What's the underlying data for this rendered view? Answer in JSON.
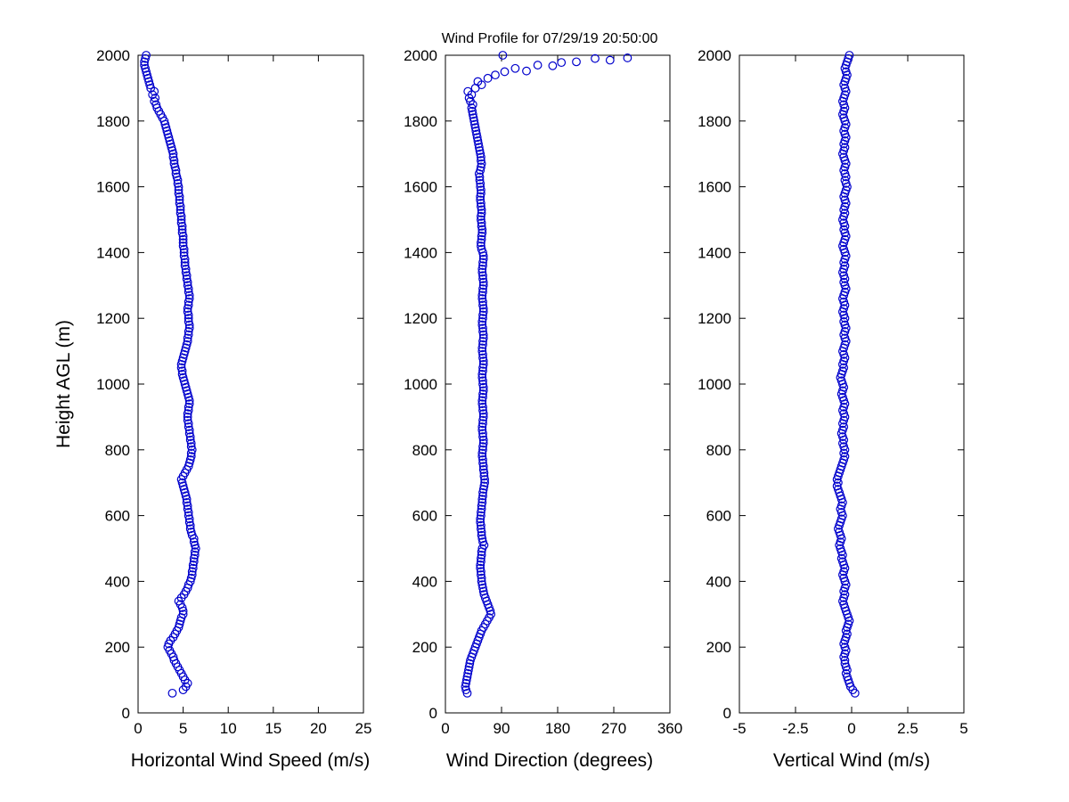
{
  "chart_data": {
    "type": "scatter",
    "title": "Wind Profile for  07/29/19 20:50:00",
    "ylabel": "Height AGL (m)",
    "ylim": [
      0,
      2000
    ],
    "yticks": [
      0,
      200,
      400,
      600,
      800,
      1000,
      1200,
      1400,
      1600,
      1800,
      2000
    ],
    "grid": false,
    "legend": "none",
    "marker": {
      "color": "#0000cc",
      "radius": 4.3
    },
    "heights": [
      60,
      70,
      80,
      90,
      100,
      110,
      120,
      130,
      140,
      150,
      160,
      170,
      180,
      190,
      200,
      210,
      220,
      230,
      240,
      250,
      260,
      270,
      280,
      290,
      300,
      310,
      320,
      330,
      340,
      350,
      360,
      370,
      380,
      390,
      400,
      410,
      420,
      430,
      440,
      450,
      460,
      470,
      480,
      490,
      500,
      510,
      520,
      530,
      540,
      550,
      560,
      570,
      580,
      590,
      600,
      610,
      620,
      630,
      640,
      650,
      660,
      670,
      680,
      690,
      700,
      710,
      720,
      730,
      740,
      750,
      760,
      770,
      780,
      790,
      800,
      810,
      820,
      830,
      840,
      850,
      860,
      870,
      880,
      890,
      900,
      910,
      920,
      930,
      940,
      950,
      960,
      970,
      980,
      990,
      1000,
      1010,
      1020,
      1030,
      1040,
      1050,
      1060,
      1070,
      1080,
      1090,
      1100,
      1110,
      1120,
      1130,
      1140,
      1150,
      1160,
      1170,
      1180,
      1190,
      1200,
      1210,
      1220,
      1230,
      1240,
      1250,
      1260,
      1270,
      1280,
      1290,
      1300,
      1310,
      1320,
      1330,
      1340,
      1350,
      1360,
      1370,
      1380,
      1390,
      1400,
      1410,
      1420,
      1430,
      1440,
      1450,
      1460,
      1470,
      1480,
      1490,
      1500,
      1510,
      1520,
      1530,
      1540,
      1550,
      1560,
      1570,
      1580,
      1590,
      1600,
      1610,
      1620,
      1630,
      1640,
      1650,
      1660,
      1670,
      1680,
      1690,
      1700,
      1710,
      1720,
      1730,
      1740,
      1750,
      1760,
      1770,
      1780,
      1790,
      1800,
      1810,
      1820,
      1830,
      1840,
      1850,
      1860,
      1870,
      1880,
      1890,
      1900,
      1910,
      1920,
      1930,
      1940,
      1950,
      1960,
      1970,
      1980,
      1990,
      2000
    ],
    "panels": [
      {
        "id": "horizontal-wind-speed",
        "xlabel": "Horizontal Wind Speed (m/s)",
        "xlim": [
          0,
          25
        ],
        "xticks": [
          0,
          5,
          10,
          15,
          20,
          25
        ],
        "values": [
          3.8,
          5.0,
          5.3,
          5.5,
          5.2,
          5.0,
          4.8,
          4.6,
          4.4,
          4.2,
          4.0,
          3.9,
          3.7,
          3.5,
          3.3,
          3.4,
          3.6,
          3.9,
          4.1,
          4.3,
          4.5,
          4.6,
          4.7,
          4.8,
          5.0,
          5.0,
          4.9,
          4.7,
          4.5,
          4.8,
          5.1,
          5.3,
          5.5,
          5.6,
          5.8,
          5.9,
          6.0,
          6.0,
          6.1,
          6.1,
          6.2,
          6.2,
          6.3,
          6.3,
          6.4,
          6.3,
          6.2,
          6.2,
          6.0,
          5.9,
          5.8,
          5.8,
          5.7,
          5.7,
          5.6,
          5.6,
          5.5,
          5.5,
          5.4,
          5.4,
          5.3,
          5.2,
          5.1,
          5.0,
          4.9,
          4.8,
          5.0,
          5.2,
          5.4,
          5.6,
          5.7,
          5.8,
          5.9,
          5.9,
          6.0,
          5.9,
          5.9,
          5.8,
          5.8,
          5.7,
          5.7,
          5.6,
          5.6,
          5.5,
          5.5,
          5.5,
          5.6,
          5.6,
          5.7,
          5.7,
          5.6,
          5.5,
          5.4,
          5.3,
          5.2,
          5.1,
          5.0,
          4.9,
          4.9,
          4.8,
          4.8,
          4.9,
          5.0,
          5.1,
          5.2,
          5.3,
          5.4,
          5.5,
          5.5,
          5.6,
          5.6,
          5.7,
          5.7,
          5.6,
          5.6,
          5.6,
          5.5,
          5.5,
          5.6,
          5.6,
          5.7,
          5.7,
          5.6,
          5.6,
          5.5,
          5.5,
          5.4,
          5.4,
          5.3,
          5.3,
          5.2,
          5.2,
          5.2,
          5.1,
          5.1,
          5.1,
          5.0,
          5.0,
          5.0,
          5.0,
          4.9,
          4.9,
          4.9,
          4.8,
          4.8,
          4.8,
          4.7,
          4.7,
          4.7,
          4.6,
          4.6,
          4.6,
          4.5,
          4.5,
          4.5,
          4.4,
          4.4,
          4.3,
          4.2,
          4.2,
          4.1,
          4.0,
          4.0,
          3.9,
          3.9,
          3.8,
          3.7,
          3.6,
          3.5,
          3.4,
          3.3,
          3.2,
          3.1,
          3.0,
          2.9,
          2.7,
          2.5,
          2.3,
          2.1,
          2.0,
          1.8,
          1.9,
          1.6,
          1.8,
          1.4,
          1.3,
          1.2,
          1.1,
          1.0,
          0.9,
          0.8,
          0.7,
          0.7,
          0.8,
          0.9
        ]
      },
      {
        "id": "wind-direction",
        "xlabel": "Wind Direction (degrees)",
        "xlim": [
          0,
          360
        ],
        "xticks": [
          0,
          90,
          180,
          270,
          360
        ],
        "values": [
          35,
          33,
          32,
          33,
          34,
          35,
          36,
          37,
          38,
          39,
          40,
          42,
          44,
          46,
          48,
          50,
          52,
          54,
          56,
          58,
          61,
          64,
          67,
          70,
          73,
          72,
          70,
          68,
          66,
          64,
          62,
          61,
          60,
          59,
          58,
          58,
          57,
          57,
          56,
          56,
          57,
          57,
          58,
          58,
          59,
          62,
          60,
          59,
          58,
          58,
          57,
          57,
          56,
          56,
          57,
          57,
          58,
          58,
          59,
          59,
          60,
          60,
          61,
          62,
          63,
          63,
          62,
          62,
          61,
          61,
          60,
          60,
          59,
          59,
          60,
          60,
          61,
          61,
          60,
          60,
          59,
          59,
          60,
          60,
          61,
          61,
          60,
          60,
          59,
          59,
          60,
          60,
          61,
          61,
          60,
          60,
          59,
          59,
          60,
          60,
          61,
          61,
          60,
          60,
          59,
          59,
          60,
          60,
          61,
          61,
          60,
          60,
          59,
          59,
          60,
          60,
          61,
          61,
          60,
          60,
          59,
          59,
          60,
          60,
          61,
          61,
          60,
          60,
          59,
          59,
          60,
          60,
          61,
          61,
          60,
          58,
          57,
          57,
          58,
          58,
          59,
          59,
          58,
          58,
          57,
          57,
          58,
          58,
          57,
          57,
          56,
          56,
          57,
          57,
          56,
          56,
          55,
          55,
          54,
          56,
          57,
          58,
          57,
          57,
          56,
          55,
          54,
          53,
          52,
          51,
          50,
          49,
          48,
          47,
          46,
          45,
          44,
          43,
          42,
          44,
          40,
          38,
          42,
          36,
          48,
          58,
          52,
          68,
          80,
          95,
          112,
          148,
          210,
          240,
          92
        ],
        "extra_points": [
          [
            1952,
            130
          ],
          [
            1968,
            172
          ],
          [
            1978,
            186
          ],
          [
            1985,
            264
          ],
          [
            1992,
            292
          ]
        ]
      },
      {
        "id": "vertical-wind",
        "xlabel": "Vertical Wind (m/s)",
        "xlim": [
          -5,
          5
        ],
        "xticks": [
          -5,
          -2.5,
          0,
          2.5,
          5
        ],
        "values": [
          0.15,
          0.05,
          -0.05,
          -0.1,
          -0.15,
          -0.2,
          -0.25,
          -0.2,
          -0.25,
          -0.3,
          -0.3,
          -0.35,
          -0.3,
          -0.25,
          -0.3,
          -0.35,
          -0.3,
          -0.25,
          -0.2,
          -0.25,
          -0.2,
          -0.15,
          -0.1,
          -0.15,
          -0.2,
          -0.25,
          -0.3,
          -0.35,
          -0.4,
          -0.35,
          -0.3,
          -0.35,
          -0.3,
          -0.25,
          -0.3,
          -0.35,
          -0.4,
          -0.35,
          -0.3,
          -0.35,
          -0.4,
          -0.45,
          -0.4,
          -0.45,
          -0.5,
          -0.55,
          -0.5,
          -0.45,
          -0.5,
          -0.55,
          -0.6,
          -0.55,
          -0.5,
          -0.45,
          -0.4,
          -0.45,
          -0.5,
          -0.45,
          -0.4,
          -0.45,
          -0.5,
          -0.55,
          -0.6,
          -0.65,
          -0.6,
          -0.65,
          -0.6,
          -0.55,
          -0.5,
          -0.45,
          -0.4,
          -0.35,
          -0.3,
          -0.35,
          -0.3,
          -0.35,
          -0.4,
          -0.35,
          -0.4,
          -0.45,
          -0.4,
          -0.35,
          -0.4,
          -0.35,
          -0.3,
          -0.35,
          -0.4,
          -0.35,
          -0.3,
          -0.35,
          -0.4,
          -0.45,
          -0.4,
          -0.35,
          -0.4,
          -0.45,
          -0.5,
          -0.45,
          -0.4,
          -0.35,
          -0.4,
          -0.35,
          -0.3,
          -0.35,
          -0.4,
          -0.35,
          -0.3,
          -0.25,
          -0.3,
          -0.35,
          -0.3,
          -0.25,
          -0.3,
          -0.35,
          -0.3,
          -0.35,
          -0.4,
          -0.35,
          -0.3,
          -0.35,
          -0.4,
          -0.35,
          -0.3,
          -0.25,
          -0.3,
          -0.35,
          -0.3,
          -0.35,
          -0.4,
          -0.35,
          -0.3,
          -0.35,
          -0.3,
          -0.25,
          -0.3,
          -0.35,
          -0.4,
          -0.35,
          -0.3,
          -0.25,
          -0.3,
          -0.35,
          -0.3,
          -0.35,
          -0.4,
          -0.35,
          -0.3,
          -0.35,
          -0.3,
          -0.25,
          -0.3,
          -0.35,
          -0.3,
          -0.25,
          -0.2,
          -0.25,
          -0.3,
          -0.25,
          -0.3,
          -0.35,
          -0.3,
          -0.25,
          -0.3,
          -0.35,
          -0.4,
          -0.35,
          -0.3,
          -0.35,
          -0.3,
          -0.25,
          -0.3,
          -0.35,
          -0.3,
          -0.25,
          -0.3,
          -0.35,
          -0.4,
          -0.35,
          -0.3,
          -0.35,
          -0.4,
          -0.35,
          -0.3,
          -0.25,
          -0.3,
          -0.35,
          -0.3,
          -0.25,
          -0.2,
          -0.25,
          -0.3,
          -0.25,
          -0.2,
          -0.15,
          -0.1
        ]
      }
    ]
  }
}
